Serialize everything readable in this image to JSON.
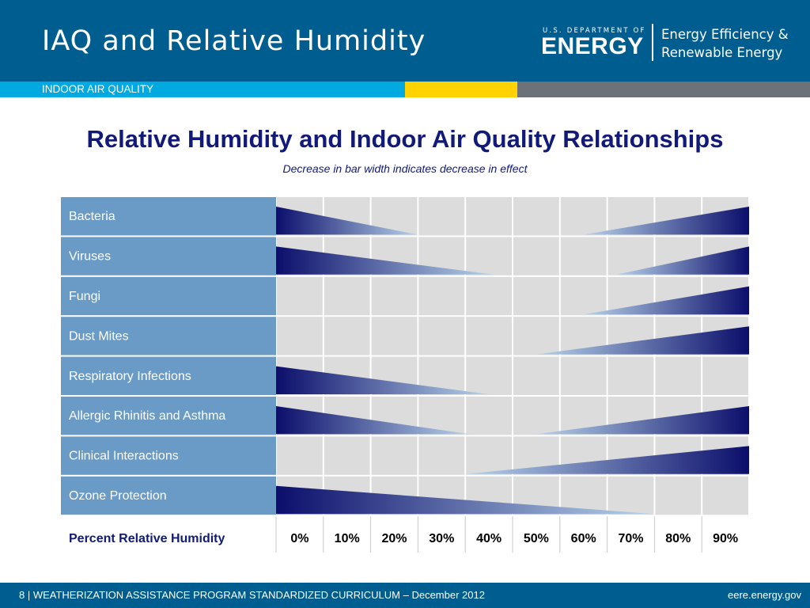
{
  "header": {
    "title": "IAQ and Relative Humidity",
    "logo_small": "U.S. DEPARTMENT OF",
    "logo_big": "ENERGY",
    "office_line1": "Energy Efficiency &",
    "office_line2": "Renewable Energy",
    "section": "INDOOR AIR QUALITY"
  },
  "colors": {
    "header_bg": "#005d8f",
    "section_blue": "#00a9e0",
    "section_yellow": "#ffd200",
    "section_gray": "#6d7278",
    "title_navy": "#111a78",
    "label_cell_bg": "#6a9bc7",
    "grid_cell_bg": "#dcdcdc",
    "bar_dark": "#0b0e6b",
    "bar_light": "#b8d4ea"
  },
  "chart_data": {
    "type": "table",
    "title": "Relative Humidity and Indoor Air Quality Relationships",
    "subtitle": "Decrease in bar width indicates decrease in effect",
    "xlabel": "Percent Relative Humidity",
    "x_ticks": [
      "0%",
      "10%",
      "20%",
      "30%",
      "40%",
      "50%",
      "60%",
      "70%",
      "80%",
      "90%"
    ],
    "xlim": [
      0,
      100
    ],
    "rows": [
      {
        "label": "Bacteria",
        "bars": [
          {
            "from": 0,
            "to": 30,
            "direction": "decreasing"
          },
          {
            "from": 65,
            "to": 100,
            "direction": "increasing"
          }
        ]
      },
      {
        "label": "Viruses",
        "bars": [
          {
            "from": 0,
            "to": 46,
            "direction": "decreasing"
          },
          {
            "from": 72,
            "to": 100,
            "direction": "increasing"
          }
        ]
      },
      {
        "label": "Fungi",
        "bars": [
          {
            "from": 65,
            "to": 100,
            "direction": "increasing"
          }
        ]
      },
      {
        "label": "Dust Mites",
        "bars": [
          {
            "from": 55,
            "to": 100,
            "direction": "increasing"
          }
        ]
      },
      {
        "label": "Respiratory Infections",
        "bars": [
          {
            "from": 0,
            "to": 45,
            "direction": "decreasing"
          }
        ]
      },
      {
        "label": "Allergic Rhinitis and Asthma",
        "bars": [
          {
            "from": 0,
            "to": 41,
            "direction": "decreasing"
          },
          {
            "from": 55,
            "to": 100,
            "direction": "increasing"
          }
        ]
      },
      {
        "label": "Clinical Interactions",
        "bars": [
          {
            "from": 40,
            "to": 100,
            "direction": "increasing"
          }
        ]
      },
      {
        "label": "Ozone Protection",
        "bars": [
          {
            "from": 0,
            "to": 80,
            "direction": "decreasing"
          }
        ]
      }
    ]
  },
  "footer": {
    "left": "8 | WEATHERIZATION ASSISTANCE PROGRAM STANDARDIZED CURRICULUM – December 2012",
    "right": "eere.energy.gov"
  }
}
